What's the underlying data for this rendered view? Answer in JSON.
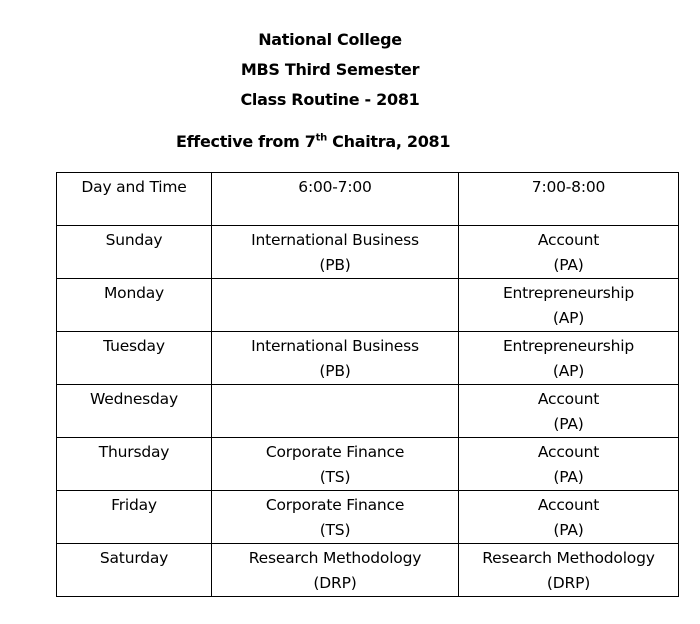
{
  "header": {
    "college": "National College",
    "program": "MBS Third Semester",
    "routine": "Class Routine  - 2081",
    "effective_prefix": "Effective from 7",
    "effective_sup": "th",
    "effective_suffix": " Chaitra, 2081"
  },
  "table": {
    "columns": [
      "Day and Time",
      "6:00-7:00",
      "7:00-8:00"
    ],
    "rows": [
      {
        "day": "Sunday",
        "slot1": {
          "subject": "International Business",
          "teacher": "(PB)"
        },
        "slot2": {
          "subject": "Account",
          "teacher": "(PA)"
        }
      },
      {
        "day": "Monday",
        "slot1": {
          "subject": "",
          "teacher": ""
        },
        "slot2": {
          "subject": "Entrepreneurship",
          "teacher": "(AP)"
        }
      },
      {
        "day": "Tuesday",
        "slot1": {
          "subject": "International Business",
          "teacher": "(PB)"
        },
        "slot2": {
          "subject": "Entrepreneurship",
          "teacher": "(AP)"
        }
      },
      {
        "day": "Wednesday",
        "slot1": {
          "subject": "",
          "teacher": ""
        },
        "slot2": {
          "subject": "Account",
          "teacher": "(PA)"
        }
      },
      {
        "day": "Thursday",
        "slot1": {
          "subject": "Corporate  Finance",
          "teacher": "(TS)"
        },
        "slot2": {
          "subject": "Account",
          "teacher": "(PA)"
        }
      },
      {
        "day": "Friday",
        "slot1": {
          "subject": "Corporate  Finance",
          "teacher": "(TS)"
        },
        "slot2": {
          "subject": "Account",
          "teacher": "(PA)"
        }
      },
      {
        "day": "Saturday",
        "slot1": {
          "subject": "Research  Methodology",
          "teacher": "(DRP)"
        },
        "slot2": {
          "subject": "Research  Methodology",
          "teacher": "(DRP)"
        }
      }
    ]
  }
}
